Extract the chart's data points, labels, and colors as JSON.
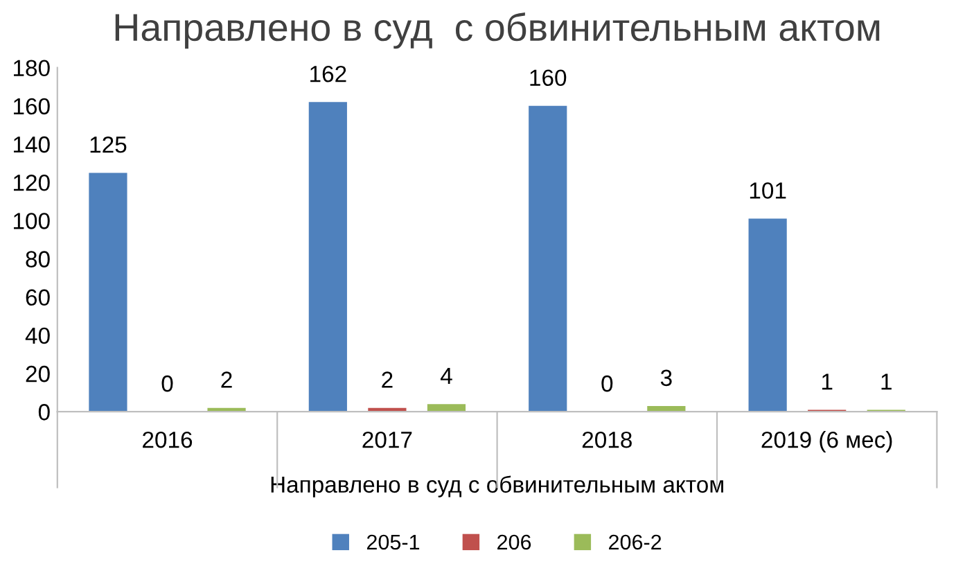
{
  "chart_data": {
    "type": "bar",
    "title": "Направлено в суд  с обвинительным актом",
    "xlabel": "Направлено в суд с обвинительным актом",
    "categories": [
      "2016",
      "2017",
      "2018",
      "2019 (6 мес)"
    ],
    "series": [
      {
        "name": "205-1",
        "color": "#4f81bd",
        "values": [
          125,
          162,
          160,
          101
        ]
      },
      {
        "name": "206",
        "color": "#c0504d",
        "values": [
          0,
          2,
          0,
          1
        ]
      },
      {
        "name": "206-2",
        "color": "#9bbb59",
        "values": [
          2,
          4,
          3,
          1
        ]
      }
    ],
    "ylim": [
      0,
      180
    ],
    "yticks": [
      0,
      20,
      40,
      60,
      80,
      100,
      120,
      140,
      160,
      180
    ],
    "grid": false,
    "legend": "bottom",
    "data_labels": true
  }
}
